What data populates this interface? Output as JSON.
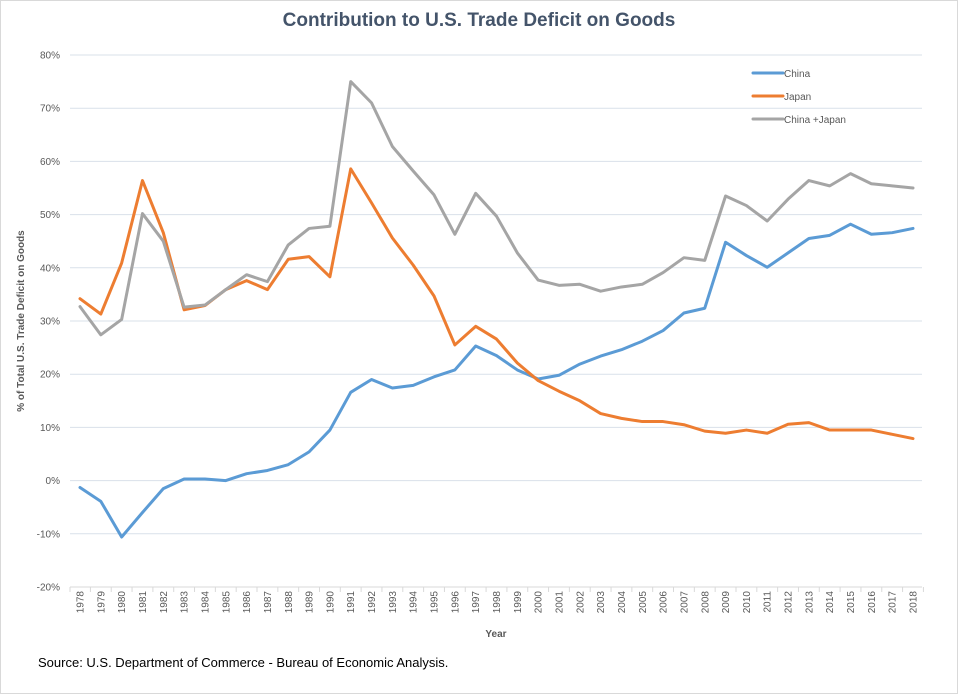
{
  "chart_data": {
    "type": "line",
    "title": "Contribution to U.S. Trade Deficit on Goods",
    "xlabel": "Year",
    "ylabel": "% of Total U.S. Trade Deficit on Goods",
    "ylim": [
      -20,
      80
    ],
    "yticks": [
      -20,
      -10,
      0,
      10,
      20,
      30,
      40,
      50,
      60,
      70,
      80
    ],
    "ytick_labels": [
      "-20%",
      "-10%",
      "0%",
      "10%",
      "20%",
      "30%",
      "40%",
      "50%",
      "60%",
      "70%",
      "80%"
    ],
    "grid": "horizontal",
    "legend": "top-right",
    "x": [
      "1978",
      "1979",
      "1980",
      "1981",
      "1982",
      "1983",
      "1984",
      "1985",
      "1986",
      "1987",
      "1988",
      "1989",
      "1990",
      "1991",
      "1992",
      "1993",
      "1994",
      "1995",
      "1996",
      "1997",
      "1998",
      "1999",
      "2000",
      "2001",
      "2002",
      "2003",
      "2004",
      "2005",
      "2006",
      "2007",
      "2008",
      "2009",
      "2010",
      "2011",
      "2012",
      "2013",
      "2014",
      "2015",
      "2016",
      "2017",
      "2018"
    ],
    "series": [
      {
        "name": "China",
        "color": "#5b9bd5",
        "values": [
          -1.3,
          -3.9,
          -10.6,
          -6.0,
          -1.5,
          0.3,
          0.3,
          0.0,
          1.3,
          1.9,
          3.0,
          5.4,
          9.5,
          16.6,
          19.0,
          17.4,
          17.9,
          19.5,
          20.8,
          25.3,
          23.5,
          20.8,
          19.1,
          19.8,
          21.9,
          23.4,
          24.6,
          26.2,
          28.2,
          31.5,
          32.4,
          44.8,
          42.3,
          40.1,
          42.8,
          45.5,
          46.1,
          48.2,
          46.3,
          46.6,
          47.4
        ]
      },
      {
        "name": "Japan",
        "color": "#ed7d31",
        "values": [
          34.2,
          31.3,
          40.9,
          56.4,
          46.6,
          32.1,
          32.9,
          35.9,
          37.6,
          35.9,
          41.6,
          42.1,
          38.3,
          58.6,
          52.2,
          45.6,
          40.5,
          34.7,
          25.5,
          29.0,
          26.6,
          22.1,
          18.8,
          16.8,
          15.0,
          12.6,
          11.7,
          11.1,
          11.1,
          10.5,
          9.3,
          8.9,
          9.5,
          8.9,
          10.6,
          10.9,
          9.5,
          9.5,
          9.5,
          8.7,
          7.9
        ]
      },
      {
        "name": "China +Japan",
        "color": "#a5a5a5",
        "values": [
          32.7,
          27.4,
          30.3,
          50.2,
          45.0,
          32.6,
          33.0,
          35.9,
          38.7,
          37.4,
          44.3,
          47.4,
          47.8,
          75.0,
          71.0,
          62.8,
          58.2,
          53.7,
          46.3,
          54.0,
          49.7,
          42.8,
          37.7,
          36.7,
          36.9,
          35.6,
          36.4,
          36.9,
          39.1,
          41.9,
          41.4,
          53.5,
          51.7,
          48.8,
          52.9,
          56.4,
          55.4,
          57.7,
          55.8,
          55.4,
          55.0
        ]
      }
    ]
  },
  "source": "Source: U.S. Department of Commerce - Bureau of Economic Analysis."
}
